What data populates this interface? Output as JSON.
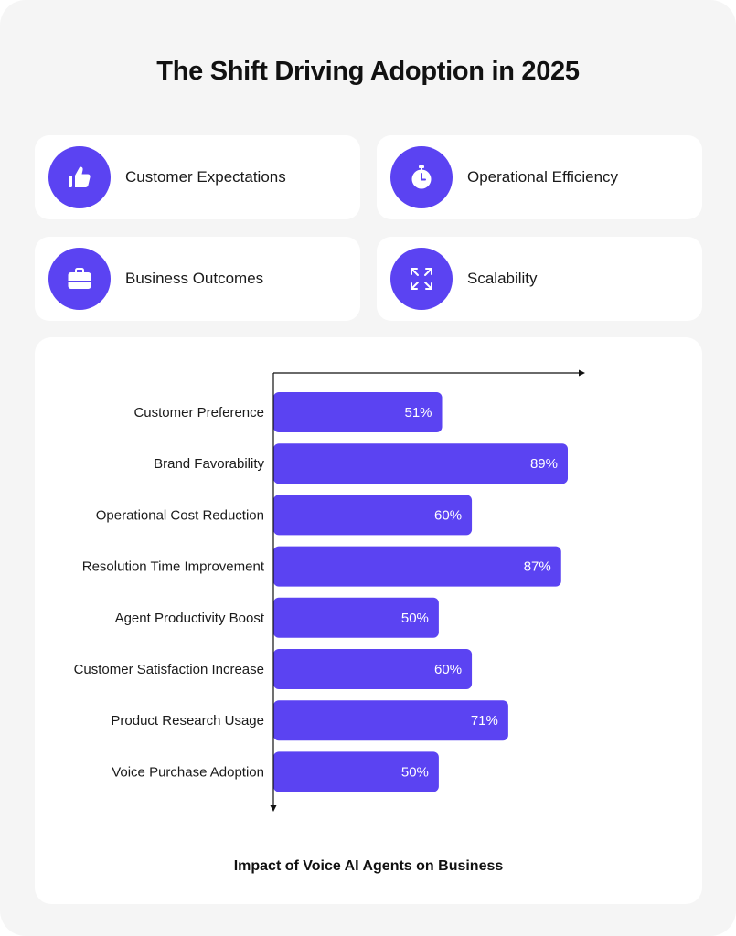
{
  "title": "The Shift Driving Adoption in 2025",
  "colors": {
    "accent": "#5b43f2",
    "background": "#f5f5f5",
    "card": "#ffffff"
  },
  "cards": [
    {
      "label": "Customer Expectations",
      "icon": "thumbs-up-icon"
    },
    {
      "label": "Operational Efficiency",
      "icon": "stopwatch-icon"
    },
    {
      "label": "Business Outcomes",
      "icon": "briefcase-icon"
    },
    {
      "label": "Scalability",
      "icon": "expand-arrows-icon"
    }
  ],
  "chart_data": {
    "type": "bar",
    "orientation": "horizontal",
    "title": "Impact of  Voice AI Agents on Business",
    "categories": [
      "Customer Preference",
      "Brand Favorability",
      "Operational Cost Reduction",
      "Resolution Time Improvement",
      "Agent Productivity Boost",
      "Customer Satisfaction Increase",
      "Product Research Usage",
      "Voice Purchase Adoption"
    ],
    "values": [
      51,
      89,
      60,
      87,
      50,
      60,
      71,
      50
    ],
    "value_labels": [
      "51%",
      "89%",
      "60%",
      "87%",
      "50%",
      "60%",
      "71%",
      "50%"
    ],
    "xlim": [
      0,
      100
    ],
    "grid": false,
    "legend": "none"
  }
}
